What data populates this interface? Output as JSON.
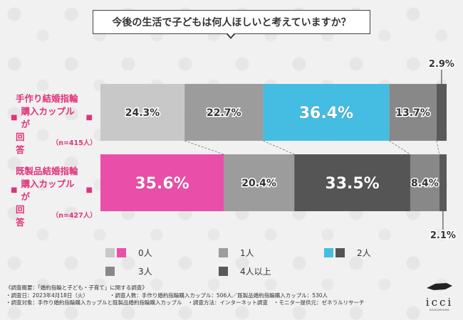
{
  "title": "今後の生活で子どもは何人ほしいと考えていますか？",
  "chart_data": {
    "type": "bar",
    "orientation": "horizontal-stacked-100",
    "categories": [
      "手作り結婚指輪購入カップルが回答",
      "既製品結婚指輪購入カップルが回答"
    ],
    "group_labels": [
      {
        "line1": "手作り結婚指輪",
        "line2": "購入カップルが",
        "line3": "回答",
        "n": "（n=415人）"
      },
      {
        "line1": "既製品結婚指輪",
        "line2": "購入カップルが",
        "line3": "回答",
        "n": "（n=427人）"
      }
    ],
    "series": [
      {
        "name": "0人",
        "values": [
          24.3,
          35.6
        ],
        "colors": [
          "#c8c8c8",
          "#e94fa8"
        ]
      },
      {
        "name": "1人",
        "values": [
          22.7,
          20.4
        ],
        "colors": [
          "#9c9c9c",
          "#9c9c9c"
        ]
      },
      {
        "name": "2人",
        "values": [
          36.4,
          33.5
        ],
        "colors": [
          "#45bde3",
          "#555555"
        ]
      },
      {
        "name": "3人",
        "values": [
          13.7,
          8.4
        ],
        "colors": [
          "#888888",
          "#888888"
        ]
      },
      {
        "name": "4人以上",
        "values": [
          2.9,
          2.1
        ],
        "colors": [
          "#595959",
          "#595959"
        ]
      }
    ],
    "value_labels": [
      [
        "24.3%",
        "22.7%",
        "36.4%",
        "13.7%",
        "2.9%"
      ],
      [
        "35.6%",
        "20.4%",
        "33.5%",
        "8.4%",
        "2.1%"
      ]
    ],
    "xlim": [
      0,
      100
    ]
  },
  "legend": [
    {
      "label": "0人",
      "colors": [
        "#c8c8c8",
        "#e94fa8"
      ]
    },
    {
      "label": "1人",
      "colors": [
        "#9c9c9c"
      ]
    },
    {
      "label": "2人",
      "colors": [
        "#45bde3",
        "#555555"
      ]
    },
    {
      "label": "3人",
      "colors": [
        "#888888"
      ]
    },
    {
      "label": "4人以上",
      "colors": [
        "#595959"
      ]
    }
  ],
  "footer": {
    "line1a": "《調査概要：「婚約指輪と子ども・子育て」に関する調査》",
    "line2a": "・調査日：2023年4月18日（火）",
    "line2b": "・調査人数：手作り婚約指輪購入カップル：506人／既製品婚約指輪購入カップル：530人",
    "line3a": "・調査対象：手作り婚約指輪購入カップルと既製品婚約指輪購入カップル",
    "line3b": "・調査方法：インターネット調査",
    "line3c": "・モニター提供元：ゼネラルリサーチ"
  },
  "logo": {
    "brand": "icci",
    "sub": "DAIKANYAMA"
  }
}
